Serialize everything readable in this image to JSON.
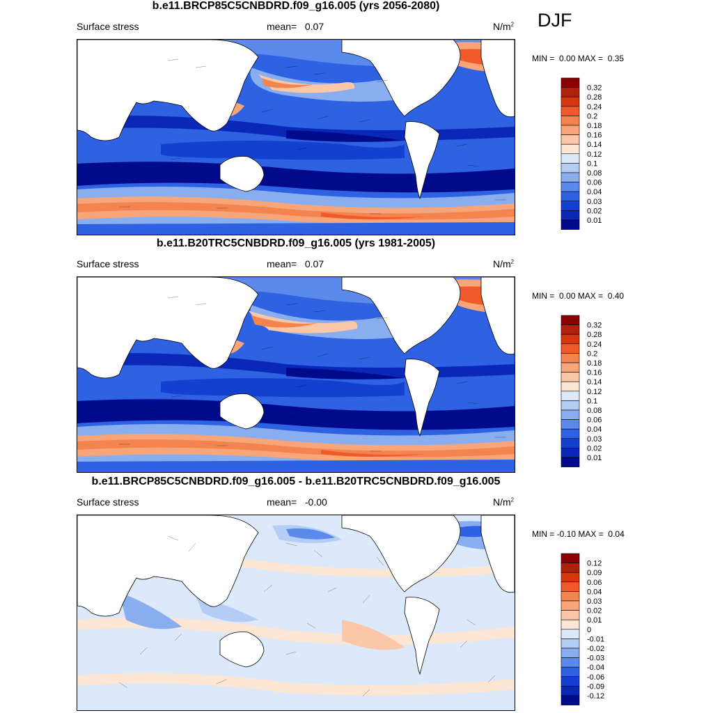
{
  "season": "DJF",
  "panels": [
    {
      "title": "b.e11.BRCP85C5CNBDRD.f09_g16.005 (yrs 2056-2080)",
      "variable": "Surface stress",
      "mean_label": "mean=",
      "mean_value": "0.07",
      "units": "N/m",
      "units_exp": "2",
      "min_label": "MIN =",
      "min_value": "0.00",
      "max_label": "MAX =",
      "max_value": "0.35",
      "colorbar": {
        "labels": [
          "0.32",
          "0.28",
          "0.24",
          "0.2",
          "0.18",
          "0.16",
          "0.14",
          "0.12",
          "0.1",
          "0.08",
          "0.06",
          "0.04",
          "0.03",
          "0.02",
          "0.01"
        ],
        "colors": [
          "#8b0000",
          "#b0200c",
          "#d8360d",
          "#f05a2a",
          "#f4844f",
          "#f8a57a",
          "#fbc7a8",
          "#fde6d3",
          "#dce9fb",
          "#b4cdf5",
          "#88aef0",
          "#5b8aec",
          "#2f62e3",
          "#1440d0",
          "#0a28b8",
          "#000b8c"
        ]
      }
    },
    {
      "title": "b.e11.B20TRC5CNBDRD.f09_g16.005 (yrs 1981-2005)",
      "variable": "Surface stress",
      "mean_label": "mean=",
      "mean_value": "0.07",
      "units": "N/m",
      "units_exp": "2",
      "min_label": "MIN =",
      "min_value": "0.00",
      "max_label": "MAX =",
      "max_value": "0.40",
      "colorbar": {
        "labels": [
          "0.32",
          "0.28",
          "0.24",
          "0.2",
          "0.18",
          "0.16",
          "0.14",
          "0.12",
          "0.1",
          "0.08",
          "0.06",
          "0.04",
          "0.03",
          "0.02",
          "0.01"
        ],
        "colors": [
          "#8b0000",
          "#b0200c",
          "#d8360d",
          "#f05a2a",
          "#f4844f",
          "#f8a57a",
          "#fbc7a8",
          "#fde6d3",
          "#dce9fb",
          "#b4cdf5",
          "#88aef0",
          "#5b8aec",
          "#2f62e3",
          "#1440d0",
          "#0a28b8",
          "#000b8c"
        ]
      }
    },
    {
      "title": "b.e11.BRCP85C5CNBDRD.f09_g16.005 - b.e11.B20TRC5CNBDRD.f09_g16.005",
      "variable": "Surface stress",
      "mean_label": "mean=",
      "mean_value": "-0.00",
      "units": "N/m",
      "units_exp": "2",
      "min_label": "MIN =",
      "min_value": "-0.10",
      "max_label": "MAX =",
      "max_value": "0.04",
      "colorbar": {
        "labels": [
          "0.12",
          "0.09",
          "0.06",
          "0.04",
          "0.03",
          "0.02",
          "0.01",
          "0",
          "-0.01",
          "-0.02",
          "-0.03",
          "-0.04",
          "-0.06",
          "-0.09",
          "-0.12"
        ],
        "colors": [
          "#8b0000",
          "#b0200c",
          "#d8360d",
          "#f05a2a",
          "#f4844f",
          "#f8a57a",
          "#fbc7a8",
          "#fde6d3",
          "#dce9fb",
          "#b4cdf5",
          "#88aef0",
          "#5b8aec",
          "#2f62e3",
          "#1440d0",
          "#0a28b8",
          "#000b8c"
        ]
      }
    }
  ]
}
